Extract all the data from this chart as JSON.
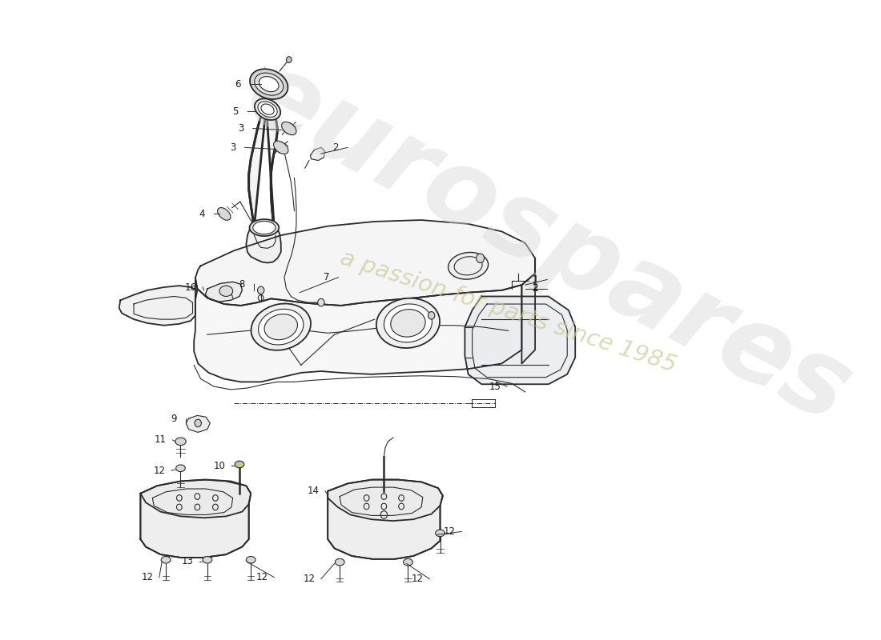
{
  "background_color": "#ffffff",
  "line_color": "#2a2a2a",
  "label_color": "#1a1a1a",
  "watermark1": "eurospares",
  "watermark2": "a passion for parts since 1985",
  "wm_color1": "#d8d8d8",
  "wm_color2": "#c8c890",
  "tank_fill": "#f2f2f2",
  "tank_fill2": "#ebebeb",
  "label_fs": 8.5,
  "lw_main": 1.3,
  "lw_thin": 0.8,
  "lw_medium": 1.0
}
